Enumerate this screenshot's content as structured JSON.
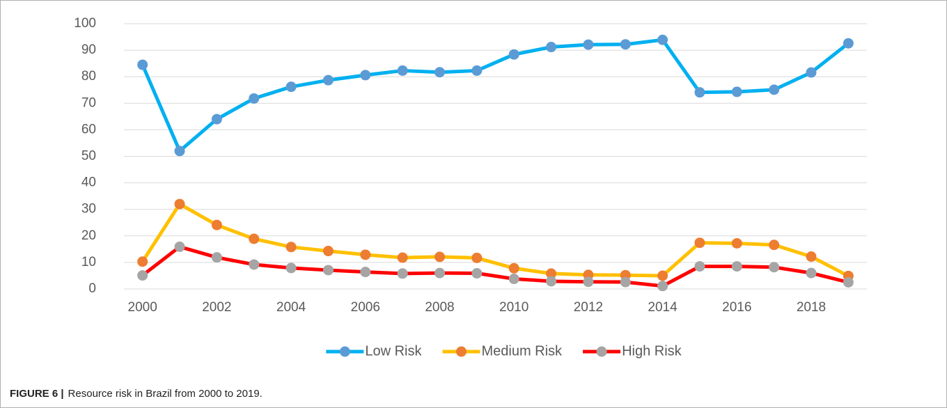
{
  "chart_data": {
    "type": "line",
    "caption_label": "FIGURE 6 |",
    "caption": "Resource risk in Brazil from 2000 to 2019.",
    "categories": [
      "2000",
      null,
      "2002",
      null,
      "2004",
      null,
      "2006",
      null,
      "2008",
      null,
      "2010",
      null,
      "2012",
      null,
      "2014",
      null,
      "2016",
      null,
      "2018",
      null
    ],
    "series": [
      {
        "name": "Low Risk",
        "color": "#00b0f0",
        "marker_color": "#5b9bd5",
        "values": [
          84.5,
          52,
          64,
          71.8,
          76.2,
          78.7,
          80.6,
          82.3,
          81.7,
          82.3,
          88.4,
          91.2,
          92.1,
          92.2,
          93.9,
          74.1,
          74.3,
          75.1,
          81.6,
          92.6
        ]
      },
      {
        "name": "Medium Risk",
        "color": "#ffc000",
        "marker_color": "#ed7d31",
        "values": [
          10.3,
          32,
          24.1,
          18.9,
          15.8,
          14.3,
          12.9,
          11.8,
          12.1,
          11.7,
          7.8,
          5.8,
          5.3,
          5.2,
          5,
          17.4,
          17.2,
          16.6,
          12.2,
          4.9
        ]
      },
      {
        "name": "High Risk",
        "color": "#ff0000",
        "marker_color": "#a5a5a5",
        "values": [
          5.1,
          15.9,
          11.9,
          9.2,
          7.9,
          7.1,
          6.4,
          5.8,
          6,
          5.9,
          3.8,
          2.9,
          2.7,
          2.6,
          1.1,
          8.5,
          8.5,
          8.2,
          6,
          2.5
        ]
      }
    ],
    "ylim": [
      0,
      100
    ],
    "yticks": [
      0,
      10,
      20,
      30,
      40,
      50,
      60,
      70,
      80,
      90,
      100
    ],
    "grid": true,
    "legend": "bottom"
  }
}
